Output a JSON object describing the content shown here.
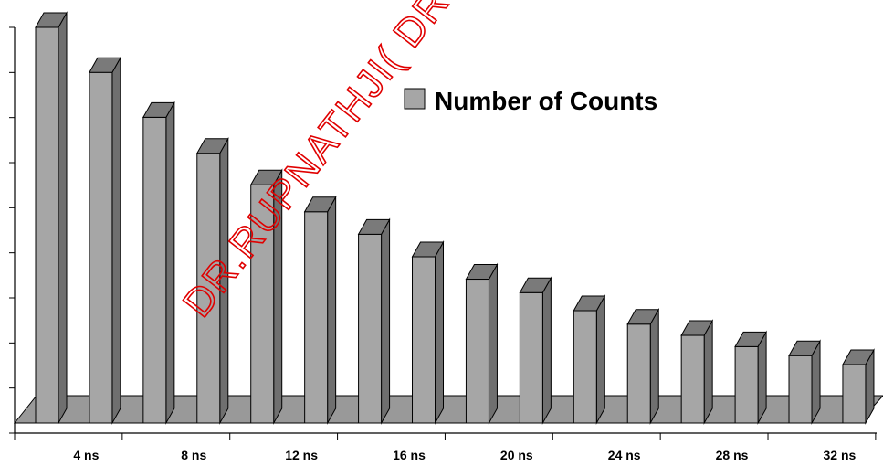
{
  "chart_data": {
    "type": "bar",
    "title": "",
    "xlabel": "",
    "ylabel": "",
    "categories": [
      "",
      "4 ns",
      "",
      "8 ns",
      "",
      "12 ns",
      "",
      "16 ns",
      "",
      "20 ns",
      "",
      "24 ns",
      "",
      "28 ns",
      "",
      "32 ns"
    ],
    "series": [
      {
        "name": "Number of Counts",
        "color": "#a6a6a6",
        "values": [
          8.8,
          7.8,
          6.8,
          6.0,
          5.3,
          4.7,
          4.2,
          3.7,
          3.2,
          2.9,
          2.5,
          2.2,
          1.95,
          1.7,
          1.5,
          1.3
        ]
      }
    ],
    "ylim": [
      0,
      9
    ],
    "y_gridlines": false,
    "y_tick_labels_visible": false,
    "style": "3d-cylinder-bars",
    "legend_position": "top-right",
    "floor_color": "#999999"
  },
  "watermark": {
    "text": "DR.RUPNATHJI( DR.RUPAK NATH )",
    "color": "#e00000"
  }
}
